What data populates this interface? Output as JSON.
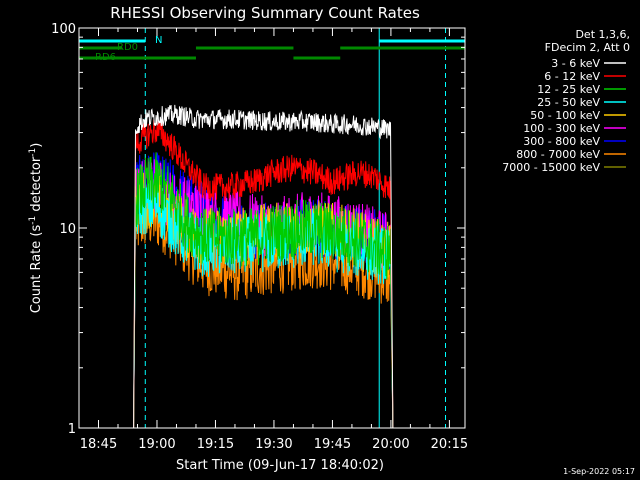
{
  "chart_data": {
    "type": "line",
    "title": "RHESSI Observing Summary Count Rates",
    "xlabel": "Start Time (09-Jun-17 18:40:02)",
    "ylabel_main": "Count Rate (s",
    "ylabel_sup1": "-1",
    "ylabel_mid": " detector",
    "ylabel_sup2": "-1",
    "ylabel_end": ")",
    "yscale": "log",
    "ylim": [
      1,
      100
    ],
    "xlim_minutes_after_1840": [
      0,
      99
    ],
    "y_ticks": [
      "1",
      "10",
      "100"
    ],
    "x_ticks": [
      {
        "label": "18:45",
        "min": 5
      },
      {
        "label": "19:00",
        "min": 20
      },
      {
        "label": "19:15",
        "min": 35
      },
      {
        "label": "19:30",
        "min": 50
      },
      {
        "label": "19:45",
        "min": 65
      },
      {
        "label": "20:00",
        "min": 80
      },
      {
        "label": "20:15",
        "min": 95
      }
    ],
    "legend_header": [
      "Det 1,3,6,",
      "FDecim 2, Att 0"
    ],
    "series": [
      {
        "name": "3 - 6 keV",
        "color": "#ffffff",
        "pts": [
          [
            14,
            0
          ],
          [
            14.5,
            32
          ],
          [
            17,
            35
          ],
          [
            20,
            36
          ],
          [
            25,
            37
          ],
          [
            30,
            35
          ],
          [
            40,
            35
          ],
          [
            50,
            34
          ],
          [
            60,
            34
          ],
          [
            65,
            33
          ],
          [
            70,
            33
          ],
          [
            76,
            32
          ],
          [
            80,
            31
          ],
          [
            80.5,
            1
          ]
        ]
      },
      {
        "name": "6 - 12 keV",
        "color": "#ff0000",
        "pts": [
          [
            14,
            0
          ],
          [
            14.5,
            26
          ],
          [
            17,
            29
          ],
          [
            20,
            31
          ],
          [
            23,
            27
          ],
          [
            27,
            21
          ],
          [
            32,
            16
          ],
          [
            38,
            16
          ],
          [
            45,
            17
          ],
          [
            50,
            19
          ],
          [
            55,
            20
          ],
          [
            60,
            19
          ],
          [
            65,
            17
          ],
          [
            72,
            19
          ],
          [
            76,
            18
          ],
          [
            79,
            16
          ],
          [
            80,
            15.5
          ],
          [
            80.5,
            1
          ]
        ]
      },
      {
        "name": "12 - 25 keV",
        "color": "#00cc00",
        "pts": [
          [
            14,
            0
          ],
          [
            14.5,
            14
          ],
          [
            17,
            16
          ],
          [
            20,
            17
          ],
          [
            23,
            15
          ],
          [
            27,
            11
          ],
          [
            32,
            9
          ],
          [
            40,
            9
          ],
          [
            45,
            9
          ],
          [
            50,
            9.5
          ],
          [
            60,
            10
          ],
          [
            65,
            9.5
          ],
          [
            70,
            9
          ],
          [
            76,
            8
          ],
          [
            80,
            7.5
          ],
          [
            80.5,
            1
          ]
        ]
      },
      {
        "name": "25 - 50 keV",
        "color": "#00ffff",
        "pts": [
          [
            14,
            0
          ],
          [
            14.5,
            12
          ],
          [
            17,
            13
          ],
          [
            20,
            13
          ],
          [
            23,
            11
          ],
          [
            27,
            9
          ],
          [
            32,
            8
          ],
          [
            40,
            8
          ],
          [
            50,
            8.5
          ],
          [
            60,
            9
          ],
          [
            65,
            8.5
          ],
          [
            70,
            8
          ],
          [
            76,
            7.5
          ],
          [
            80,
            7
          ],
          [
            80.5,
            1
          ]
        ]
      },
      {
        "name": "50 - 100 keV",
        "color": "#ffcc00",
        "pts": [
          [
            14,
            0
          ],
          [
            14.5,
            13
          ],
          [
            17,
            14
          ],
          [
            20,
            14
          ],
          [
            23,
            12
          ],
          [
            27,
            10
          ],
          [
            32,
            9
          ],
          [
            40,
            9
          ],
          [
            50,
            9.5
          ],
          [
            60,
            10
          ],
          [
            70,
            9
          ],
          [
            76,
            8
          ],
          [
            80,
            7.5
          ],
          [
            80.5,
            1
          ]
        ]
      },
      {
        "name": "100 - 300 keV",
        "color": "#ff00ff",
        "pts": [
          [
            14,
            0
          ],
          [
            14.5,
            15
          ],
          [
            17,
            16
          ],
          [
            20,
            16
          ],
          [
            23,
            14
          ],
          [
            27,
            13
          ],
          [
            32,
            12
          ],
          [
            40,
            11
          ],
          [
            50,
            10
          ],
          [
            60,
            11
          ],
          [
            70,
            10
          ],
          [
            76,
            9
          ],
          [
            80,
            8.5
          ],
          [
            80.5,
            1
          ]
        ]
      },
      {
        "name": "300 - 800 keV",
        "color": "#0000ff",
        "pts": [
          [
            14,
            0
          ],
          [
            14.5,
            16
          ],
          [
            17,
            17
          ],
          [
            20,
            17
          ],
          [
            23,
            16
          ],
          [
            27,
            14
          ],
          [
            32,
            12
          ],
          [
            40,
            10
          ],
          [
            50,
            9.5
          ],
          [
            60,
            10
          ],
          [
            70,
            9.5
          ],
          [
            76,
            9
          ],
          [
            80,
            8
          ],
          [
            80.5,
            1
          ]
        ]
      },
      {
        "name": "800 - 7000 keV",
        "color": "#ff8800",
        "pts": [
          [
            14,
            0
          ],
          [
            14.5,
            10
          ],
          [
            17,
            11
          ],
          [
            20,
            11
          ],
          [
            23,
            10
          ],
          [
            27,
            8
          ],
          [
            32,
            6.5
          ],
          [
            40,
            6
          ],
          [
            50,
            6.5
          ],
          [
            60,
            7
          ],
          [
            70,
            6.5
          ],
          [
            76,
            6
          ],
          [
            80,
            5.5
          ],
          [
            80.5,
            1
          ]
        ]
      },
      {
        "name": "7000 - 15000 keV",
        "color": "#808000",
        "pts": []
      }
    ],
    "flags": [
      {
        "label": "N",
        "color": "#00ffff",
        "segments": [
          [
            0,
            17
          ],
          [
            77,
            99
          ]
        ]
      },
      {
        "label": "RD0",
        "color": "#008800",
        "segments": [
          [
            0,
            11
          ],
          [
            30,
            55
          ],
          [
            67,
            99
          ]
        ]
      },
      {
        "label": "RD6",
        "color": "#008800",
        "segments": [
          [
            0,
            30
          ],
          [
            55,
            67
          ]
        ]
      }
    ],
    "vlines": [
      {
        "min": 0,
        "style": "solid"
      },
      {
        "min": 17,
        "style": "dashed"
      },
      {
        "min": 77,
        "style": "solid"
      },
      {
        "min": 94,
        "style": "dashed"
      }
    ],
    "footer": "1-Sep-2022 05:17"
  }
}
